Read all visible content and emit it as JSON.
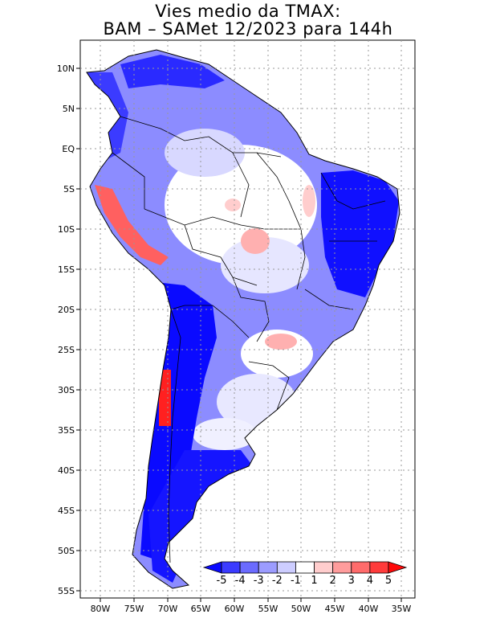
{
  "title": {
    "line1": "Vies medio da TMAX:",
    "line2": "BAM – SAMet 12/2023  para 144h"
  },
  "axes": {
    "x_ticks": [
      "80W",
      "75W",
      "70W",
      "65W",
      "60W",
      "55W",
      "50W",
      "45W",
      "40W",
      "35W"
    ],
    "y_ticks": [
      "10N",
      "5N",
      "EQ",
      "5S",
      "10S",
      "15S",
      "20S",
      "25S",
      "30S",
      "35S",
      "40S",
      "45S",
      "50S",
      "55S"
    ]
  },
  "colorbar": {
    "labels": [
      "-5",
      "-4",
      "-3",
      "-2",
      "-1",
      "1",
      "2",
      "3",
      "4",
      "5"
    ],
    "colors": [
      "#0a0aff",
      "#3b3bff",
      "#6b6bff",
      "#9c9cff",
      "#cdcdff",
      "#ffffff",
      "#ffcdcd",
      "#ff9c9c",
      "#ff6b6b",
      "#ff3b3b",
      "#ff0a0a"
    ]
  },
  "map": {
    "land_base_color": "#8c8cff",
    "ocean_color": "#ffffff"
  }
}
